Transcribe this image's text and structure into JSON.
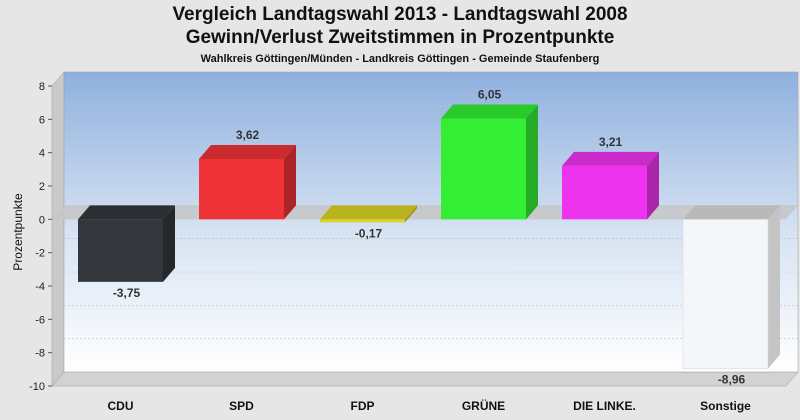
{
  "chart_data": {
    "type": "bar",
    "title": "Vergleich Landtagswahl 2013 - Landtagswahl 2008",
    "subtitle": "Gewinn/Verlust Zweitstimmen in Prozentpunkte",
    "subtitle2": "Wahlkreis Göttingen/Münden - Landkreis Göttingen - Gemeinde Staufenberg",
    "ylabel": "Prozentpunkte",
    "categories": [
      "CDU",
      "SPD",
      "FDP",
      "GRÜNE",
      "DIE LINKE.",
      "Sonstige"
    ],
    "values": [
      -3.75,
      3.62,
      -0.17,
      6.05,
      3.21,
      -8.96
    ],
    "value_labels": [
      "-3,75",
      "3,62",
      "-0,17",
      "6,05",
      "3,21",
      "-8,96"
    ],
    "colors": [
      "#33363b",
      "#ee3237",
      "#d9d324",
      "#33ee33",
      "#ee33ee",
      "#f4f6fa"
    ],
    "ylim": [
      -10,
      8
    ],
    "yticks": [
      8,
      6,
      4,
      2,
      0,
      -2,
      -4,
      -6,
      -8,
      -10
    ],
    "grid": true
  }
}
